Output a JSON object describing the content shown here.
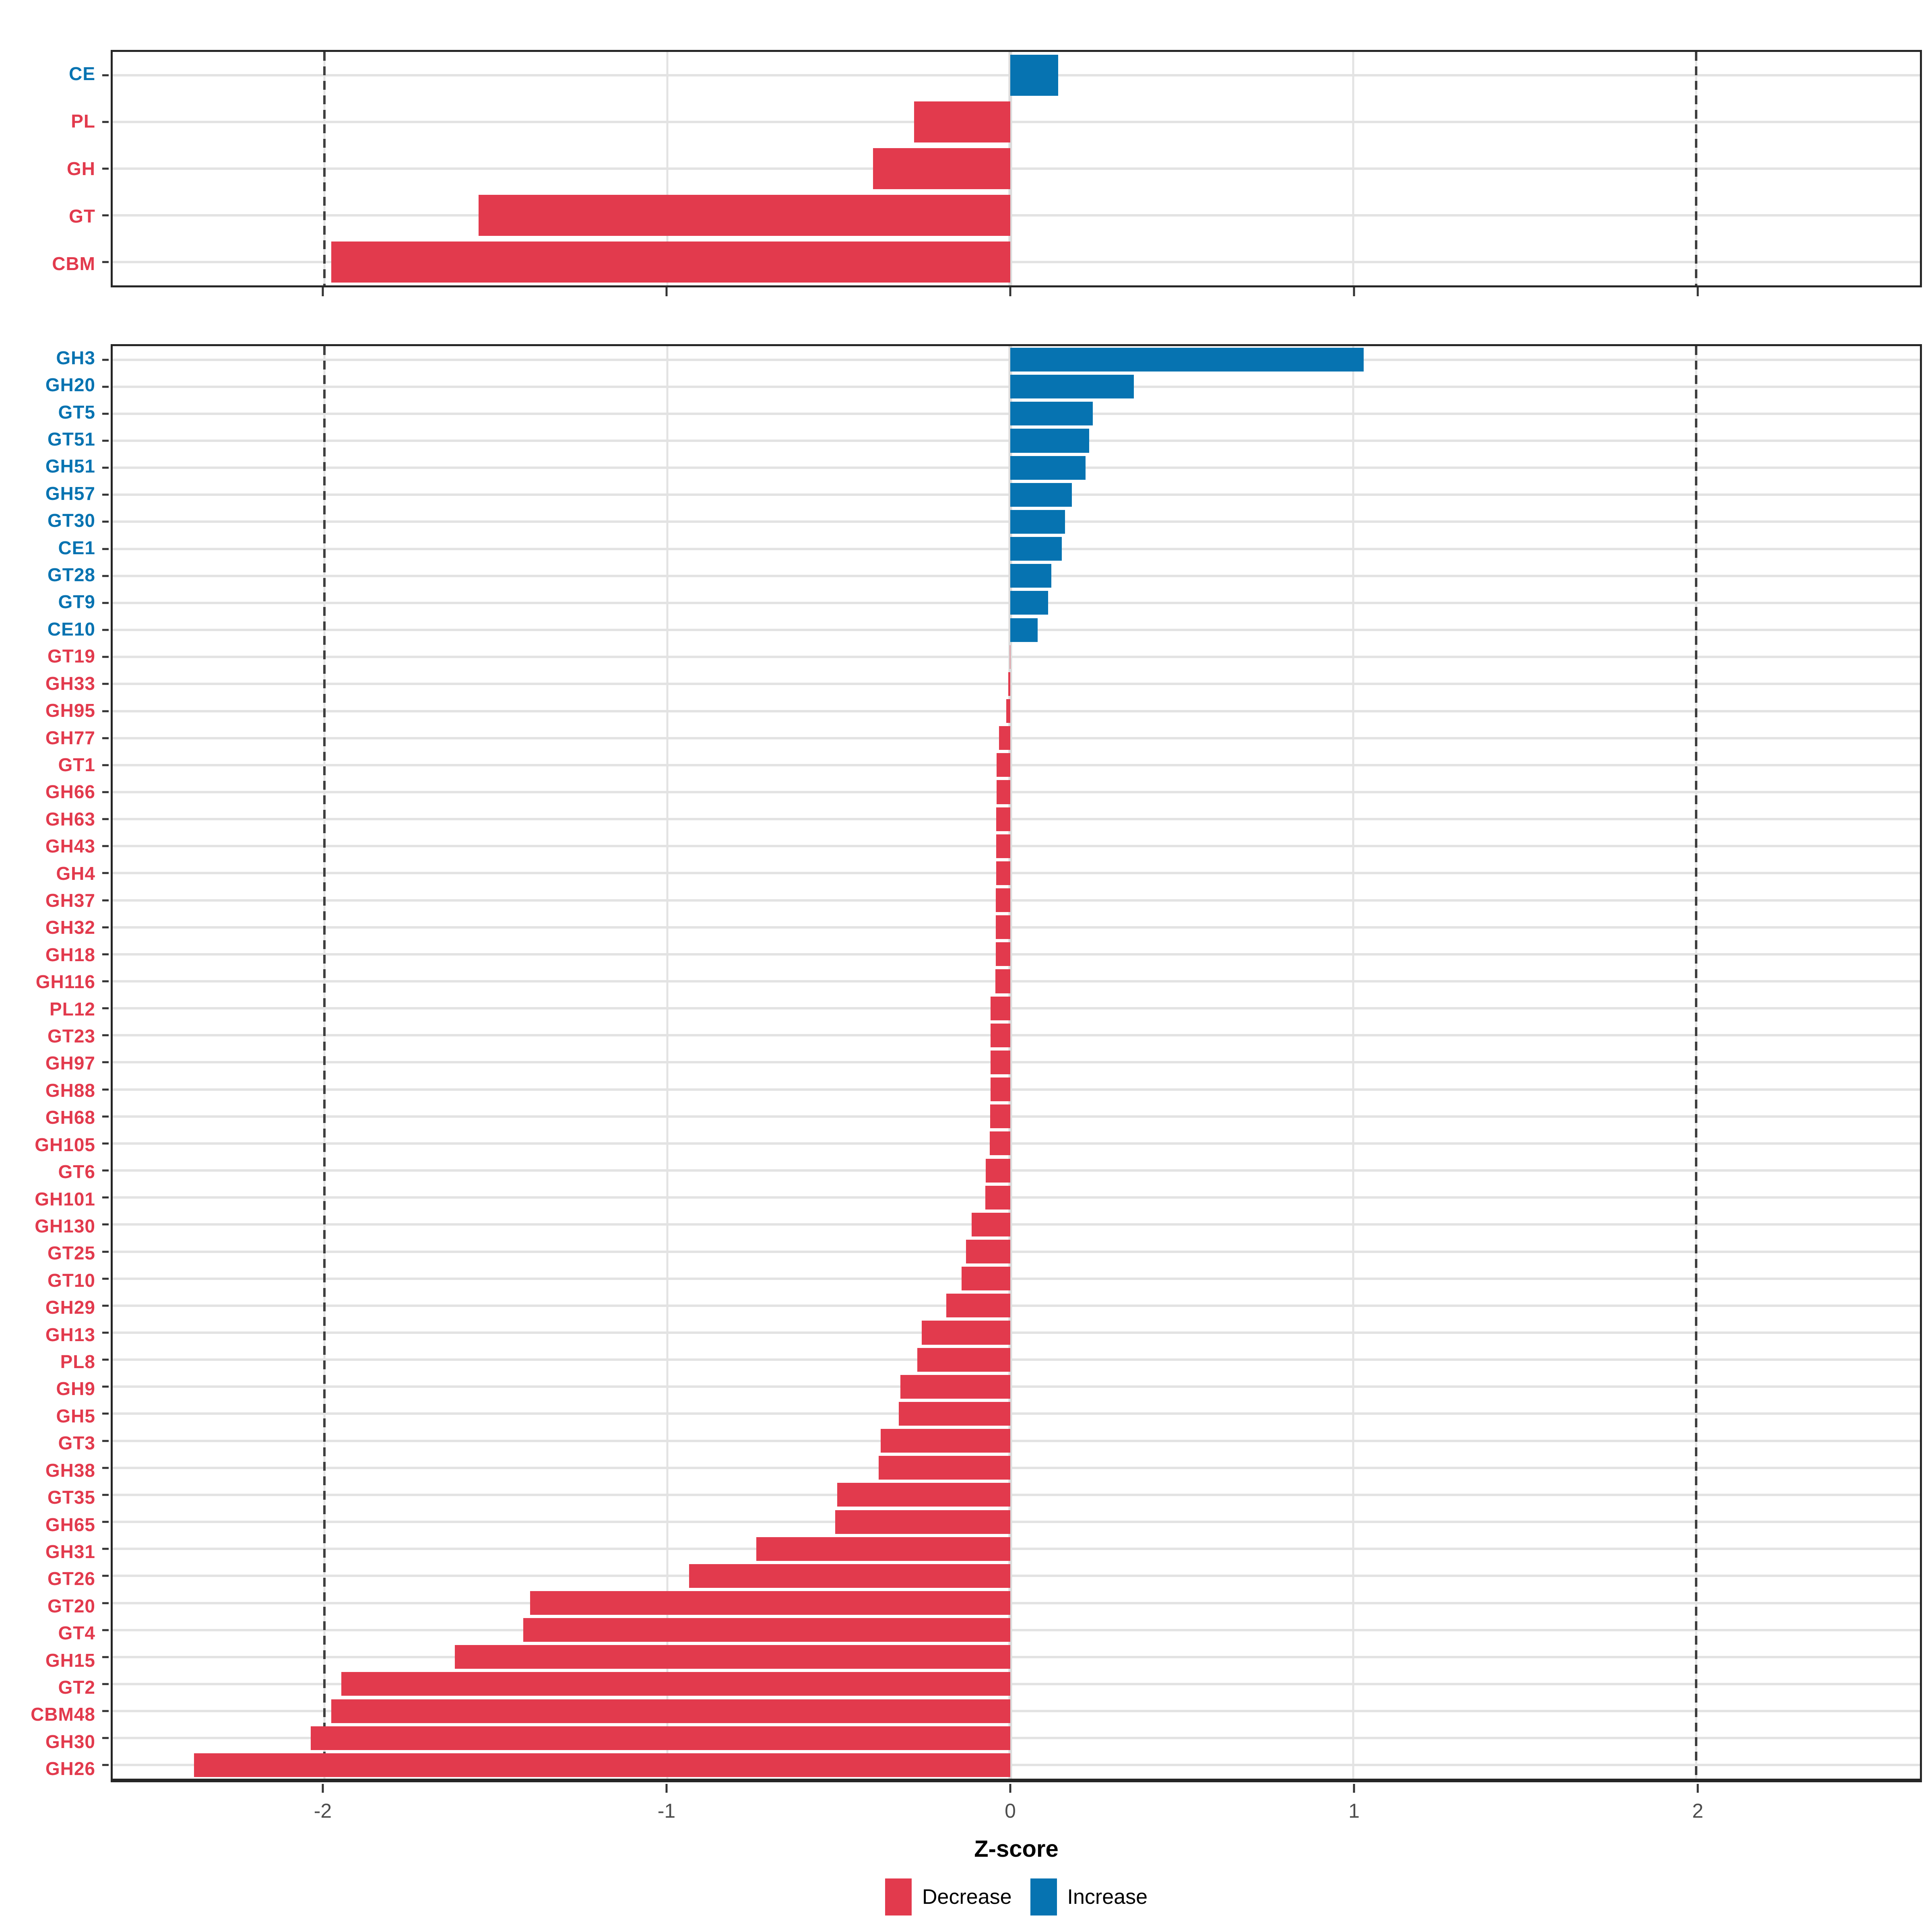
{
  "figure": {
    "background": "#FFFFFF"
  },
  "colors": {
    "decrease": "#E23A4D",
    "increase": "#0673B1",
    "grid": "#E3E3E3",
    "zero_line": "#DCDCDC",
    "dashed_line": "#3F3F3F",
    "panel_border": "#262626",
    "tick": "#333333",
    "tick_label": "#4D4D4D",
    "axis_title": "#000000"
  },
  "axis": {
    "title": "Z-score",
    "tick_labels": [
      "-2",
      "-1",
      "0",
      "1",
      "2"
    ],
    "tick_values": [
      -2,
      -1,
      0,
      1,
      2
    ],
    "dashed_values": [
      -2,
      2
    ],
    "xlim": [
      -2.62,
      2.65
    ]
  },
  "legend": {
    "items": [
      {
        "label": "Decrease",
        "key": "decrease"
      },
      {
        "label": "Increase",
        "key": "increase"
      }
    ]
  },
  "chart_data": {
    "type": "bar",
    "orientation": "horizontal",
    "xlabel": "Z-score",
    "ylabel": "",
    "xlim": [
      -2.62,
      2.65
    ],
    "grid": true,
    "legend_position": "bottom",
    "dashed_lines": [
      -2,
      2
    ],
    "panels": [
      {
        "name": "cazyme-classes",
        "categories": [
          "CE",
          "PL",
          "GH",
          "GT",
          "CBM"
        ],
        "values": [
          0.14,
          -0.28,
          -0.4,
          -1.55,
          -1.98
        ]
      },
      {
        "name": "cazyme-families",
        "categories": [
          "GH3",
          "GH20",
          "GT5",
          "GT51",
          "GH51",
          "GH57",
          "GT30",
          "CE1",
          "GT28",
          "GT9",
          "CE10",
          "GT19",
          "GH33",
          "GH95",
          "GH77",
          "GT1",
          "GH66",
          "GH63",
          "GH43",
          "GH4",
          "GH37",
          "GH32",
          "GH18",
          "GH116",
          "PL12",
          "GT23",
          "GH97",
          "GH88",
          "GH68",
          "GH105",
          "GT6",
          "GH101",
          "GH130",
          "GT25",
          "GT10",
          "GH29",
          "GH13",
          "PL8",
          "GH9",
          "GH5",
          "GT3",
          "GH38",
          "GT35",
          "GH65",
          "GH31",
          "GT26",
          "GT20",
          "GT4",
          "GH15",
          "GT2",
          "CBM48",
          "GH30",
          "GH26"
        ],
        "values": [
          1.03,
          0.36,
          0.24,
          0.23,
          0.22,
          0.18,
          0.16,
          0.15,
          0.12,
          0.11,
          0.08,
          -0.001,
          -0.006,
          -0.012,
          -0.033,
          -0.04,
          -0.04,
          -0.041,
          -0.041,
          -0.041,
          -0.042,
          -0.042,
          -0.042,
          -0.043,
          -0.057,
          -0.058,
          -0.058,
          -0.058,
          -0.059,
          -0.06,
          -0.072,
          -0.073,
          -0.113,
          -0.129,
          -0.142,
          -0.187,
          -0.258,
          -0.271,
          -0.32,
          -0.325,
          -0.378,
          -0.384,
          -0.505,
          -0.51,
          -0.74,
          -0.936,
          -1.4,
          -1.42,
          -1.62,
          -1.95,
          -1.98,
          -2.04,
          -2.38
        ]
      }
    ]
  }
}
